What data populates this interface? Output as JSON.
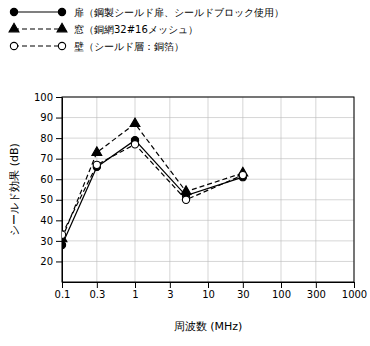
{
  "chart_data": {
    "type": "line",
    "x_label": "周波数 (MHz)",
    "y_label": "シールド効果 (dB)",
    "log": "x",
    "grid": true,
    "legend": "top-left",
    "x": [
      0.1,
      0.3,
      1,
      5,
      30
    ],
    "xlim": [
      0.1,
      1000
    ],
    "xticks": [
      0.1,
      0.3,
      1,
      3,
      10,
      30,
      100,
      300,
      1000
    ],
    "ylim": [
      10,
      100
    ],
    "yticks": [
      20,
      30,
      40,
      50,
      60,
      70,
      80,
      90,
      100
    ],
    "series": [
      {
        "name": "扉（鋼製シールド扉、シールドブロック使用）",
        "color": "#000000",
        "marker": "circle",
        "line_style": "solid",
        "values": [
          28,
          66,
          79,
          52,
          61
        ]
      },
      {
        "name": "窓（銅網32#16メッシュ）",
        "color": "#000000",
        "marker": "triangle",
        "line_style": "dashed",
        "values": [
          31,
          73,
          87,
          54,
          63
        ]
      },
      {
        "name": "壁（シールド層：銅箔）",
        "color": "#000000",
        "marker": "open-circle",
        "line_style": "dashed",
        "values": [
          33,
          67,
          77,
          50,
          62
        ]
      }
    ]
  }
}
